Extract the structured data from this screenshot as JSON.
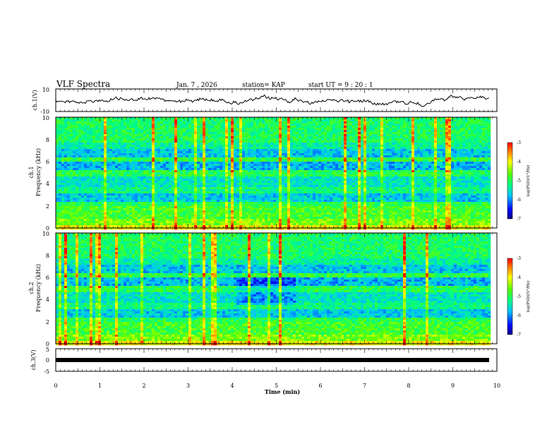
{
  "header": {
    "title": "VLF Spectra",
    "date": "Jan. 7 , 2026",
    "station": "station= KAP",
    "start": "start UT = 9 : 20 : 1"
  },
  "chart_data": [
    {
      "type": "line",
      "panel": "ch1-waveform",
      "ylabel": "ch.1(V)",
      "ylim": [
        -10,
        10
      ],
      "yticks": [
        "10",
        "-10"
      ],
      "xlim": [
        0,
        10
      ]
    },
    {
      "type": "heatmap",
      "panel": "ch1-spectrogram",
      "ylabel_line1": "ch.1",
      "ylabel_line2": "Frequency (kHz)",
      "ylim": [
        0,
        10
      ],
      "yticks": [
        "0",
        "2",
        "4",
        "6",
        "8",
        "10"
      ],
      "xlim": [
        0,
        10
      ],
      "colorbar": {
        "label": "log(PSD)(V²/Hz)",
        "range": [
          -7,
          -3
        ],
        "ticks": [
          "-3",
          "-4",
          "-5",
          "-6",
          "-7"
        ]
      }
    },
    {
      "type": "heatmap",
      "panel": "ch2-spectrogram",
      "ylabel_line1": "ch.2",
      "ylabel_line2": "Frequency (kHz)",
      "ylim": [
        0,
        10
      ],
      "yticks": [
        "0",
        "2",
        "4",
        "6",
        "8",
        "10"
      ],
      "xlim": [
        0,
        10
      ],
      "colorbar": {
        "label": "log(PSD)(V²/Hz)",
        "range": [
          -7,
          -3
        ],
        "ticks": [
          "-3",
          "-4",
          "-5",
          "-6",
          "-7"
        ]
      }
    },
    {
      "type": "line",
      "panel": "ch3-waveform",
      "ylabel": "ch.3(V)",
      "ylim": [
        -5,
        5
      ],
      "yticks": [
        "5",
        "0",
        "-5"
      ],
      "xlim": [
        0,
        10
      ],
      "xlabel": "Time (min)",
      "xticks": [
        "0",
        "1",
        "2",
        "3",
        "4",
        "5",
        "6",
        "7",
        "8",
        "9",
        "10"
      ]
    }
  ]
}
